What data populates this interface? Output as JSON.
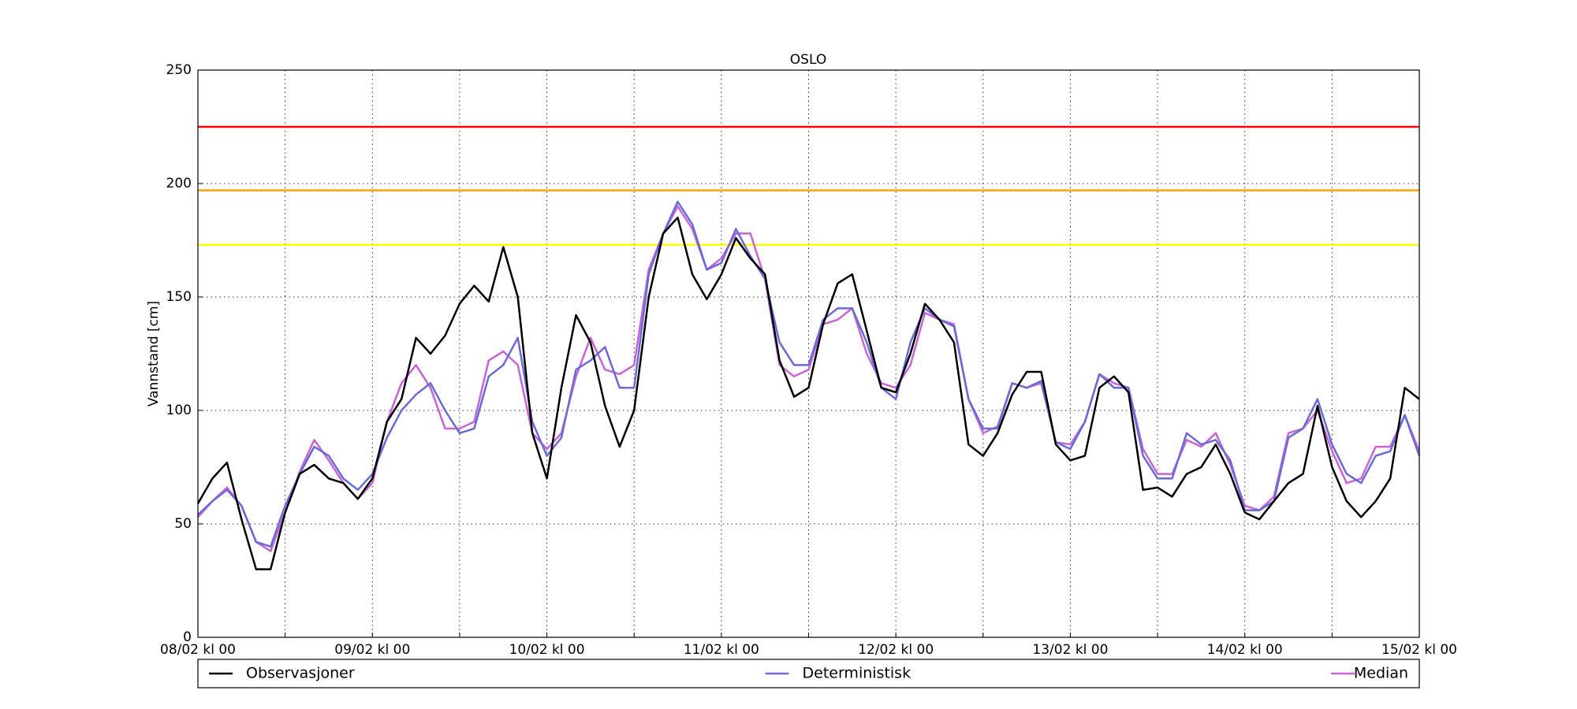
{
  "chart_data": {
    "type": "line",
    "title": "OSLO",
    "y_label": "Vannstand [cm]",
    "x": [
      0,
      2,
      4,
      6,
      8,
      10,
      12,
      14,
      16,
      18,
      20,
      22,
      24,
      26,
      28,
      30,
      32,
      34,
      36,
      38,
      40,
      42,
      44,
      46,
      48,
      50,
      52,
      54,
      56,
      58,
      60,
      62,
      64,
      66,
      68,
      70,
      72,
      74,
      76,
      78,
      80,
      82,
      84,
      86,
      88,
      90,
      92,
      94,
      96,
      98,
      100,
      102,
      104,
      106,
      108,
      110,
      112,
      114,
      116,
      118,
      120,
      122,
      124,
      126,
      128,
      130,
      132,
      134,
      136,
      138,
      140,
      142,
      144,
      146,
      148,
      150,
      152,
      154,
      156,
      158,
      160,
      162,
      164,
      166,
      168
    ],
    "series": [
      {
        "name": "Observasjoner",
        "color": "#000000",
        "values": [
          59,
          70,
          77,
          52,
          30,
          30,
          55,
          72,
          76,
          70,
          68,
          61,
          70,
          95,
          105,
          132,
          125,
          133,
          147,
          155,
          148,
          172,
          150,
          90,
          70,
          110,
          142,
          130,
          102,
          84,
          100,
          150,
          178,
          185,
          160,
          149,
          160,
          176,
          167,
          160,
          122,
          106,
          110,
          138,
          156,
          160,
          135,
          110,
          108,
          125,
          147,
          140,
          130,
          85,
          80,
          90,
          107,
          117,
          117,
          85,
          78,
          80,
          110,
          115,
          108,
          65,
          66,
          62,
          72,
          75,
          85,
          72,
          55,
          52,
          60,
          68,
          72,
          102,
          75,
          60,
          53,
          60,
          70,
          110,
          105
        ]
      },
      {
        "name": "Deterministisk",
        "color": "#6a6ad6",
        "values": [
          54,
          60,
          65,
          58,
          42,
          40,
          58,
          72,
          84,
          80,
          70,
          65,
          72,
          88,
          100,
          107,
          112,
          100,
          90,
          92,
          115,
          120,
          132,
          95,
          80,
          88,
          118,
          122,
          128,
          110,
          110,
          160,
          178,
          192,
          182,
          162,
          165,
          180,
          168,
          158,
          130,
          120,
          120,
          140,
          145,
          145,
          130,
          110,
          105,
          130,
          145,
          140,
          137,
          105,
          92,
          92,
          112,
          110,
          113,
          86,
          83,
          95,
          116,
          110,
          110,
          80,
          70,
          70,
          90,
          85,
          87,
          78,
          56,
          56,
          60,
          88,
          92,
          105,
          85,
          72,
          68,
          80,
          82,
          98,
          80
        ]
      },
      {
        "name": "Median",
        "color": "#c864d6",
        "values": [
          53,
          60,
          66,
          58,
          42,
          38,
          55,
          73,
          87,
          78,
          68,
          61,
          68,
          95,
          112,
          120,
          110,
          92,
          92,
          95,
          122,
          126,
          120,
          90,
          83,
          90,
          115,
          132,
          118,
          116,
          120,
          162,
          178,
          190,
          180,
          162,
          167,
          178,
          178,
          158,
          120,
          115,
          118,
          138,
          140,
          145,
          125,
          112,
          110,
          120,
          143,
          140,
          138,
          105,
          90,
          93,
          112,
          110,
          112,
          86,
          85,
          95,
          116,
          112,
          110,
          83,
          72,
          72,
          87,
          84,
          90,
          76,
          58,
          56,
          62,
          90,
          92,
          100,
          82,
          68,
          70,
          84,
          84,
          98,
          82
        ]
      }
    ],
    "hlines": [
      {
        "value": 225,
        "color": "#ff0000"
      },
      {
        "value": 197,
        "color": "#ffa500"
      },
      {
        "value": 173,
        "color": "#ffff00"
      }
    ],
    "xlim": [
      0,
      168
    ],
    "xticks": [
      {
        "value": 0,
        "label": "08/02 kl 00"
      },
      {
        "value": 24,
        "label": "09/02 kl 00"
      },
      {
        "value": 48,
        "label": "10/02 kl 00"
      },
      {
        "value": 72,
        "label": "11/02 kl 00"
      },
      {
        "value": 96,
        "label": "12/02 kl 00"
      },
      {
        "value": 120,
        "label": "13/02 kl 00"
      },
      {
        "value": 144,
        "label": "14/02 kl 00"
      },
      {
        "value": 168,
        "label": "15/02 kl 00"
      }
    ],
    "minor_xticks": [
      12,
      36,
      60,
      84,
      108,
      132,
      156
    ],
    "ylim": [
      0,
      250
    ],
    "yticks": [
      0,
      50,
      100,
      150,
      200,
      250
    ],
    "grid": true,
    "legend": "bottom"
  }
}
